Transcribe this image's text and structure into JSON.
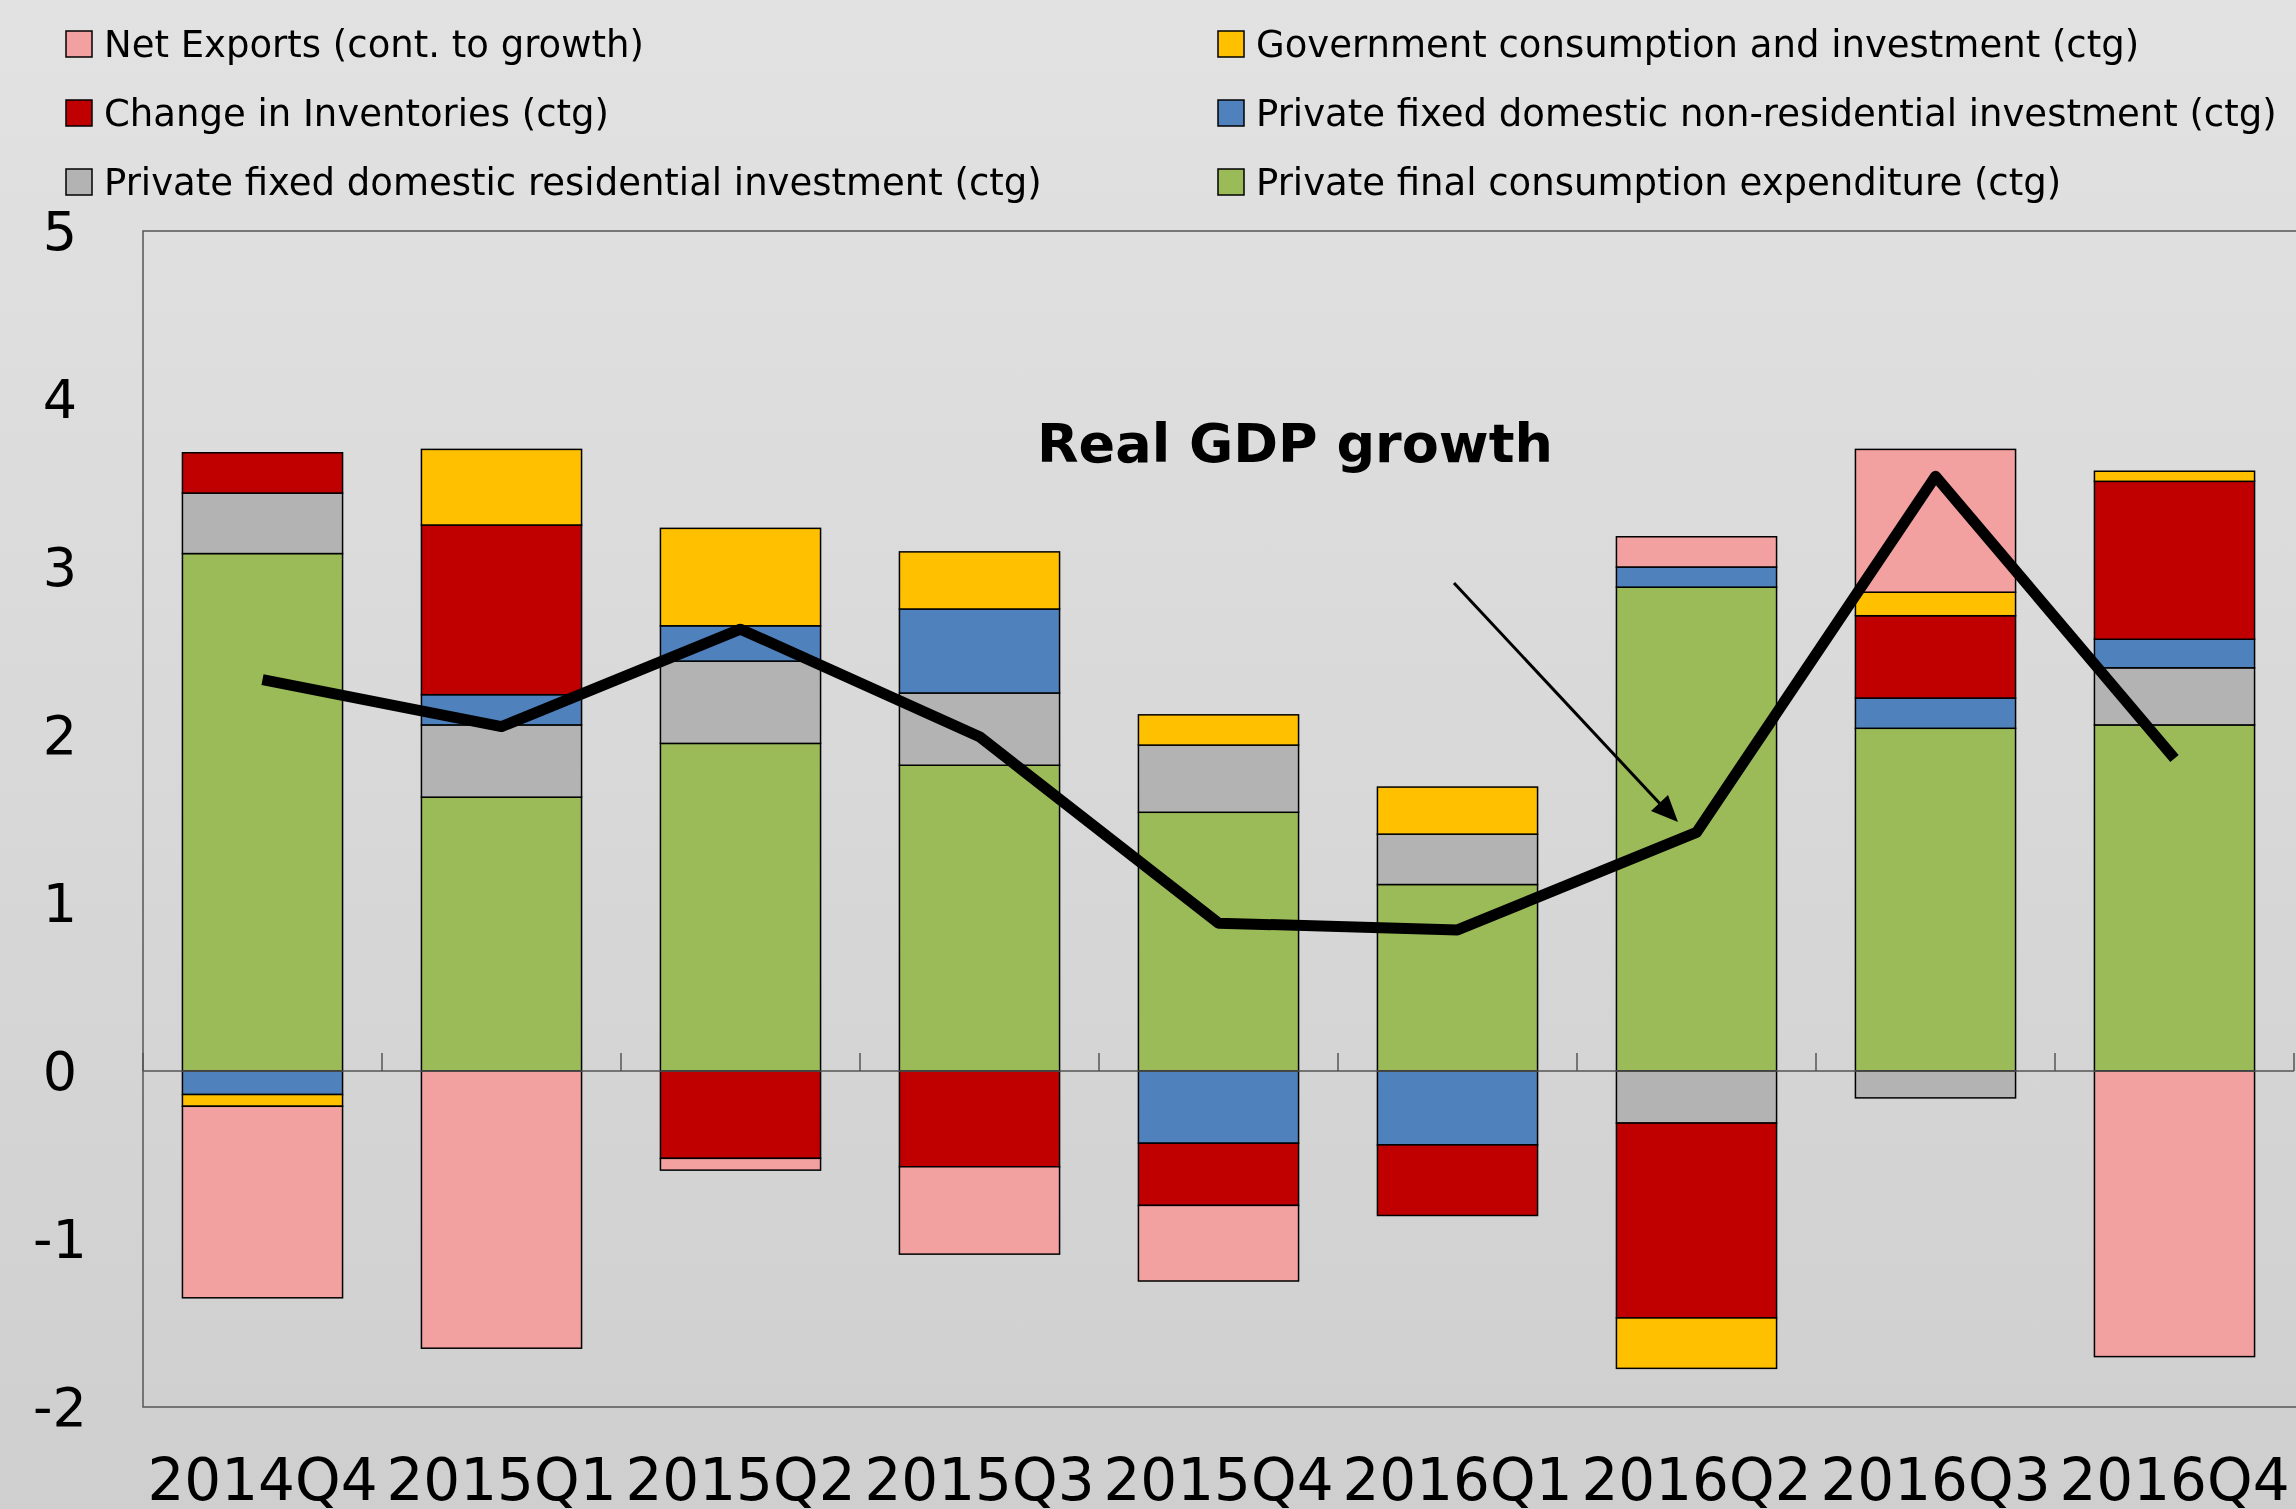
{
  "chart_data": {
    "type": "bar",
    "stacked": true,
    "legend": "top",
    "categories": [
      "2014Q4",
      "2015Q1",
      "2015Q2",
      "2015Q3",
      "2015Q4",
      "2016Q1",
      "2016Q2",
      "2016Q3",
      "2016Q4"
    ],
    "ylim": [
      -2,
      5
    ],
    "yticks": [
      -2,
      -1,
      0,
      1,
      2,
      3,
      4,
      5
    ],
    "series": [
      {
        "name": "Private final consumption expenditure (ctg)",
        "color": "#9bbb59",
        "values": [
          3.08,
          1.63,
          1.95,
          1.82,
          1.54,
          1.11,
          2.88,
          2.04,
          2.06
        ]
      },
      {
        "name": "Private fixed domestic residential investment (ctg)",
        "color": "#b3b3b3",
        "values": [
          0.36,
          0.43,
          0.49,
          0.43,
          0.4,
          0.3,
          -0.31,
          -0.16,
          0.34
        ]
      },
      {
        "name": "Private fixed domestic non-residential investment (ctg)",
        "color": "#4f81bd",
        "values": [
          -0.14,
          0.18,
          0.21,
          0.5,
          -0.43,
          -0.44,
          0.12,
          0.18,
          0.17
        ]
      },
      {
        "name": "Change in Inventories (ctg)",
        "color": "#c00000",
        "values": [
          0.24,
          1.01,
          -0.52,
          -0.57,
          -0.37,
          -0.42,
          -1.16,
          0.49,
          0.94
        ]
      },
      {
        "name": "Government consumption and investment (ctg)",
        "color": "#ffc000",
        "values": [
          -0.07,
          0.45,
          0.58,
          0.34,
          0.18,
          0.28,
          -0.3,
          0.14,
          0.06
        ]
      },
      {
        "name": "Net Exports (cont. to growth)",
        "color": "#f2a0a0",
        "values": [
          -1.14,
          -1.65,
          -0.07,
          -0.52,
          -0.45,
          0,
          0.18,
          0.85,
          -1.7
        ]
      },
      {
        "type": "line",
        "color": "#000000",
        "values": [
          2.33,
          2.05,
          2.63,
          1.99,
          0.88,
          0.84,
          1.42,
          3.54,
          1.86
        ]
      }
    ],
    "annotations": [
      "Real GDP growth"
    ]
  }
}
